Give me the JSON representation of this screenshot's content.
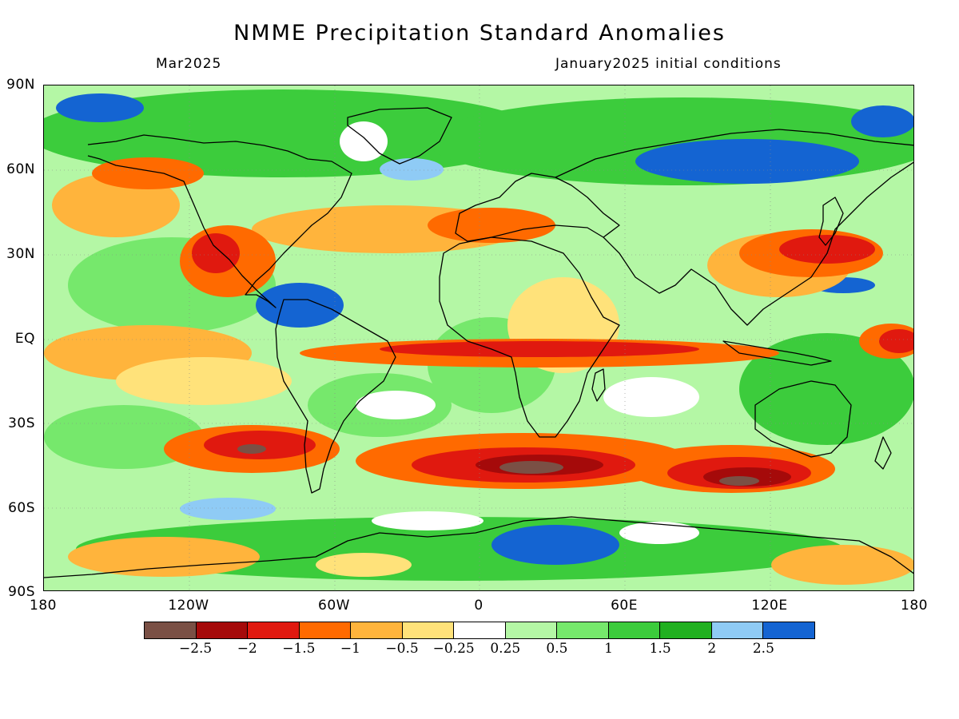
{
  "title": "NMME Precipitation Standard Anomalies",
  "valid_month": "Mar2025",
  "initial_conditions": "January2025 initial conditions",
  "lat_labels": [
    "90N",
    "60N",
    "30N",
    "EQ",
    "30S",
    "60S",
    "90S"
  ],
  "lon_labels": [
    "180",
    "120W",
    "60W",
    "0",
    "60E",
    "120E",
    "180"
  ],
  "colorbar": {
    "colors": [
      "#7a5045",
      "#a50a0a",
      "#e0190f",
      "#ff6a00",
      "#ffb43c",
      "#ffe27a",
      "#ffffff",
      "#b4f7a5",
      "#76e86c",
      "#3ccc3c",
      "#21b020",
      "#8fcbf5",
      "#1464d2"
    ],
    "labels": [
      "−2.5",
      "−2",
      "−1.5",
      "−1",
      "−0.5",
      "−0.25",
      "0.25",
      "0.5",
      "1",
      "1.5",
      "2",
      "2.5"
    ]
  }
}
